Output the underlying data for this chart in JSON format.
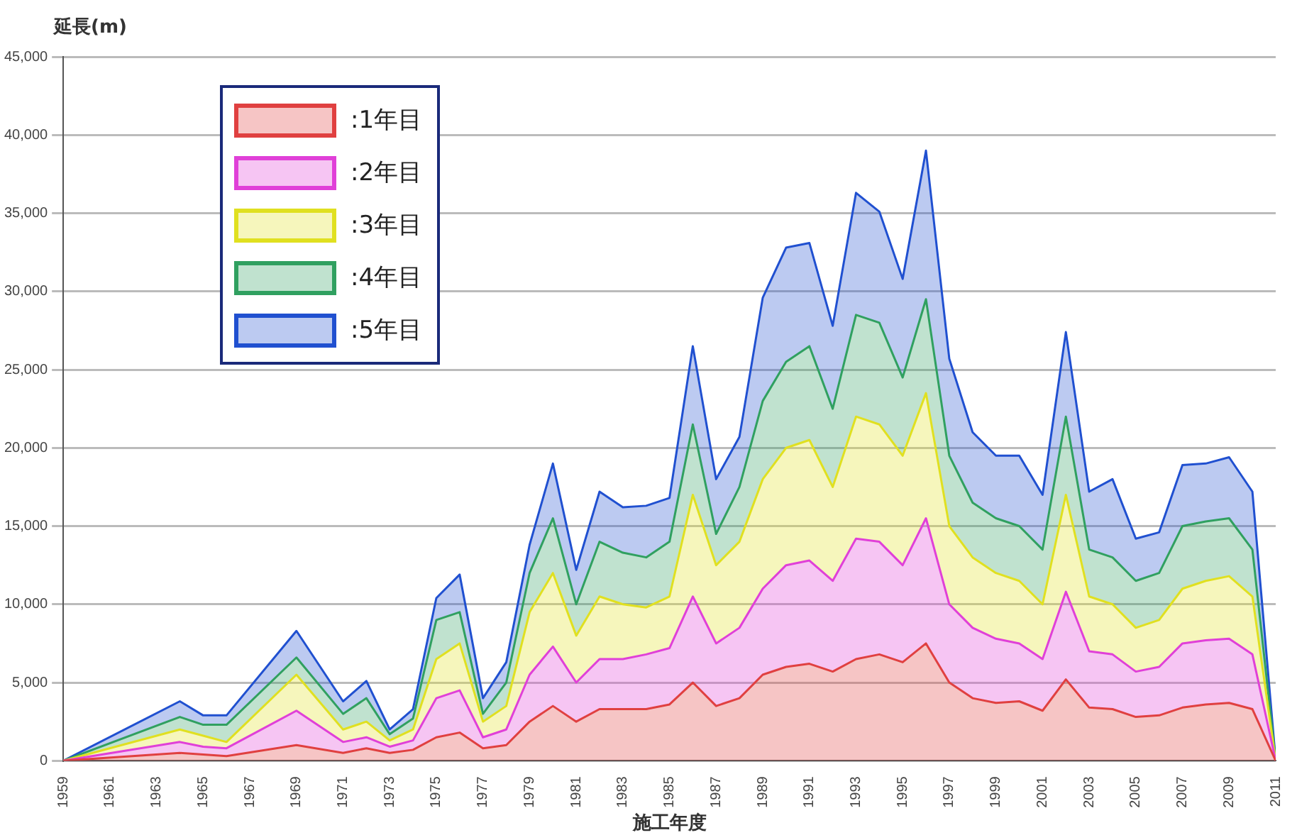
{
  "chart_data": {
    "type": "area",
    "ylabel": "延長(m)",
    "xlabel": "施工年度",
    "stacked": true,
    "grid": "y",
    "legend": "top left",
    "marker": "none",
    "x": [
      1959,
      1964,
      1965,
      1966,
      1969,
      1971,
      1972,
      1973,
      1974,
      1975,
      1976,
      1977,
      1978,
      1979,
      1980,
      1981,
      1982,
      1983,
      1984,
      1985,
      1986,
      1987,
      1988,
      1989,
      1990,
      1991,
      1992,
      1993,
      1994,
      1995,
      1996,
      1997,
      1998,
      1999,
      2000,
      2001,
      2002,
      2003,
      2004,
      2005,
      2006,
      2007,
      2008,
      2009,
      2010,
      2011
    ],
    "xlim": [
      1959,
      2011
    ],
    "xticks": [
      1959,
      1961,
      1963,
      1965,
      1967,
      1969,
      1971,
      1973,
      1975,
      1977,
      1979,
      1981,
      1983,
      1985,
      1987,
      1989,
      1991,
      1993,
      1995,
      1997,
      1999,
      2001,
      2003,
      2005,
      2007,
      2009,
      2011
    ],
    "ylim": [
      0,
      45000
    ],
    "yticks": [
      0,
      {
        "value": 5000,
        "label": "5,000"
      },
      {
        "value": 10000,
        "label": "10,000"
      },
      {
        "value": 15000,
        "label": "15,000"
      },
      {
        "value": 20000,
        "label": "20,000"
      },
      {
        "value": 25000,
        "label": "25,000"
      },
      {
        "value": 30000,
        "label": "30,000"
      },
      {
        "value": 35000,
        "label": "35,000"
      },
      {
        "value": 40000,
        "label": "40,000"
      },
      {
        "value": 45000,
        "label": "45,000"
      }
    ],
    "series": [
      {
        "name": ":1年目",
        "color": "#e04040",
        "values": [
          0,
          500,
          400,
          300,
          1000,
          500,
          800,
          500,
          700,
          1500,
          1800,
          800,
          1000,
          2500,
          3500,
          2500,
          3300,
          3300,
          3300,
          3600,
          5000,
          3500,
          4000,
          5500,
          6000,
          6200,
          5700,
          6500,
          6800,
          6300,
          7500,
          5000,
          4000,
          3700,
          3800,
          3200,
          5200,
          3400,
          3300,
          2800,
          2900,
          3400,
          3600,
          3700,
          3300,
          0
        ]
      },
      {
        "name": ":2年目",
        "color": "#e040d8",
        "values": [
          0,
          700,
          500,
          500,
          2200,
          700,
          700,
          400,
          600,
          2500,
          2700,
          700,
          1000,
          3000,
          3800,
          2500,
          3200,
          3200,
          3500,
          3600,
          5500,
          4000,
          4500,
          5500,
          6500,
          6600,
          5800,
          7700,
          7200,
          6200,
          8000,
          5000,
          4500,
          4100,
          3700,
          3300,
          5600,
          3600,
          3500,
          2900,
          3100,
          4100,
          4100,
          4100,
          3500,
          0
        ]
      },
      {
        "name": ":3年目",
        "color": "#e0e020",
        "values": [
          0,
          800,
          700,
          400,
          2300,
          800,
          1000,
          400,
          700,
          2500,
          3000,
          1000,
          1500,
          4000,
          4700,
          3000,
          4000,
          3500,
          3000,
          3300,
          6500,
          5000,
          5500,
          7000,
          7500,
          7700,
          6000,
          7800,
          7500,
          7000,
          8000,
          5000,
          4500,
          4200,
          4000,
          3500,
          6200,
          3500,
          3200,
          2800,
          3000,
          3500,
          3800,
          4000,
          3700,
          0
        ]
      },
      {
        "name": ":4年目",
        "color": "#30a060",
        "values": [
          0,
          800,
          700,
          1100,
          1100,
          1000,
          1500,
          400,
          700,
          2500,
          2000,
          500,
          1500,
          2500,
          3500,
          2000,
          3500,
          3300,
          3200,
          3500,
          4500,
          2000,
          3500,
          5000,
          5500,
          6000,
          5000,
          6500,
          6500,
          5000,
          6000,
          4500,
          3500,
          3500,
          3500,
          3500,
          5000,
          3000,
          3000,
          3000,
          3000,
          4000,
          3800,
          3700,
          3000,
          0
        ]
      },
      {
        "name": ":5年目",
        "color": "#2050d0",
        "values": [
          0,
          1000,
          600,
          600,
          1700,
          800,
          1100,
          300,
          600,
          1400,
          2400,
          1000,
          1300,
          1800,
          3500,
          2200,
          3200,
          2900,
          3300,
          2800,
          5000,
          3500,
          3200,
          6600,
          7300,
          6600,
          5300,
          7800,
          7100,
          6300,
          9500,
          6200,
          4500,
          4000,
          4500,
          3500,
          5400,
          3700,
          5000,
          2700,
          2600,
          3900,
          3700,
          3900,
          3700,
          0
        ]
      }
    ]
  }
}
